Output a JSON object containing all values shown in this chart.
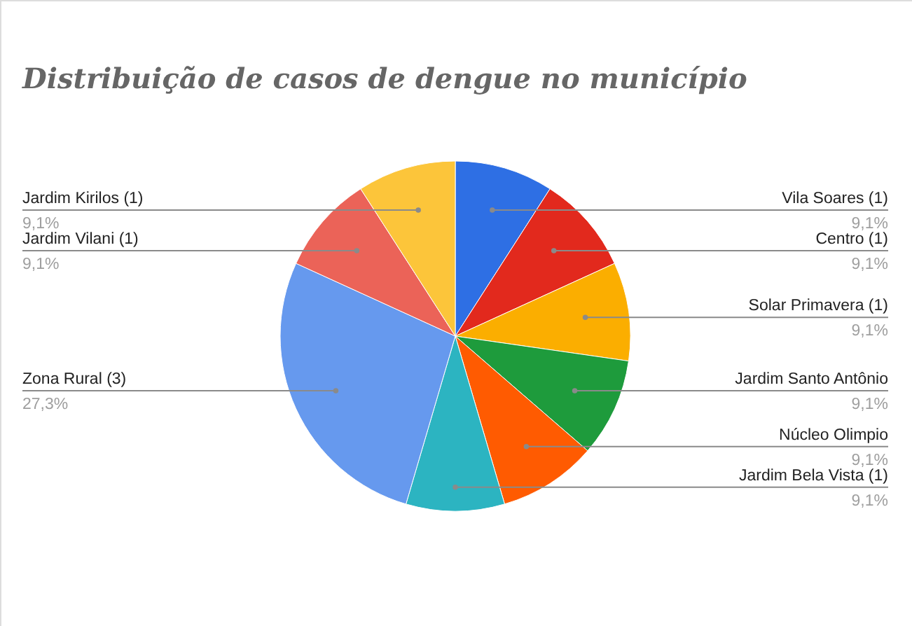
{
  "chart_data": {
    "type": "pie",
    "title": "Distribuição de casos de dengue no município",
    "categories": [
      "Vila Soares (1)",
      "Centro (1)",
      "Solar Primavera (1)",
      "Jardim Santo Antônio",
      "Núcleo Olimpio",
      "Jardim Bela Vista (1)",
      "Zona Rural (3)",
      "Jardim Vilani (1)",
      "Jardim Kirilos (1)"
    ],
    "values": [
      9.1,
      9.1,
      9.1,
      9.1,
      9.1,
      9.1,
      27.3,
      9.1,
      9.1
    ],
    "colors": [
      "#2e6fe4",
      "#e2291d",
      "#fbae00",
      "#1e9b3c",
      "#ff5b01",
      "#2cb4c1",
      "#6699ee",
      "#eb6358",
      "#fcc53a"
    ],
    "value_labels": [
      "9,1%",
      "9,1%",
      "9,1%",
      "9,1%",
      "9,1%",
      "9,1%",
      "27,3%",
      "9,1%",
      "9,1%"
    ]
  }
}
